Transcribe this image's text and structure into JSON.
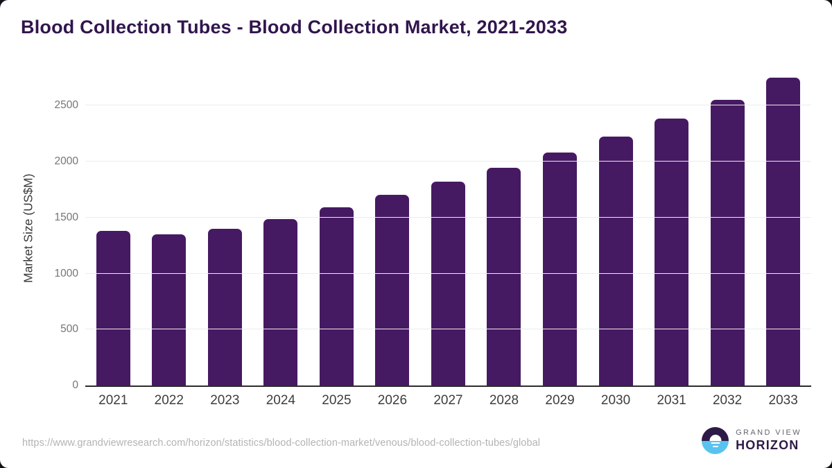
{
  "page": {
    "source_url": "https://www.grandviewresearch.com/horizon/statistics/blood-collection-market/venous/blood-collection-tubes/global",
    "logo": {
      "brand_top": "GRAND VIEW",
      "brand_bottom": "HORIZON"
    }
  },
  "chart_data": {
    "type": "bar",
    "title": "Blood Collection Tubes - Blood Collection Market, 2021-2033",
    "xlabel": "",
    "ylabel": "Market Size (US$M)",
    "categories": [
      "2021",
      "2022",
      "2023",
      "2024",
      "2025",
      "2026",
      "2027",
      "2028",
      "2029",
      "2030",
      "2031",
      "2032",
      "2033"
    ],
    "values": [
      1380,
      1350,
      1400,
      1490,
      1590,
      1705,
      1820,
      1945,
      2080,
      2225,
      2385,
      2555,
      2750
    ],
    "yticks": [
      0,
      500,
      1000,
      1500,
      2000,
      2500
    ],
    "ylim": [
      0,
      2825
    ],
    "grid": true,
    "legend": false,
    "colors": {
      "bar": "#461A62",
      "title": "#31154D",
      "gridline": "#ECECEC",
      "axis_line": "#2B2B2B",
      "y_tick_label": "#757575",
      "x_tick_label": "#3D3D3D",
      "url_text": "#B3B3B3",
      "logo_purple": "#2E1A47",
      "logo_blue": "#59C3F0"
    }
  }
}
